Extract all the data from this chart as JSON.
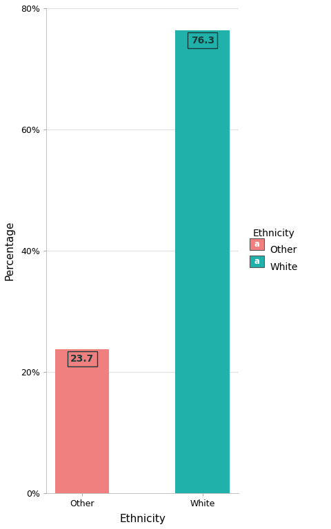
{
  "categories": [
    "Other",
    "White"
  ],
  "values": [
    23.7,
    76.3
  ],
  "bar_colors": [
    "#F08080",
    "#20B2AA"
  ],
  "xlabel": "Ethnicity",
  "ylabel": "Percentage",
  "ylim": [
    0,
    80
  ],
  "yticks": [
    0,
    20,
    40,
    60,
    80
  ],
  "ytick_labels": [
    "0%",
    "20%",
    "40%",
    "60%",
    "80%"
  ],
  "legend_title": "Ethnicity",
  "legend_labels": [
    "Other",
    "White"
  ],
  "legend_colors": [
    "#F08080",
    "#20B2AA"
  ],
  "bar_label_fontsize": 10,
  "axis_label_fontsize": 11,
  "tick_fontsize": 9,
  "legend_fontsize": 10,
  "background_color": "#ffffff",
  "grid_color": "#e0e0e0",
  "annotation_text_color": "#1a3a3a",
  "bar_width": 0.45
}
